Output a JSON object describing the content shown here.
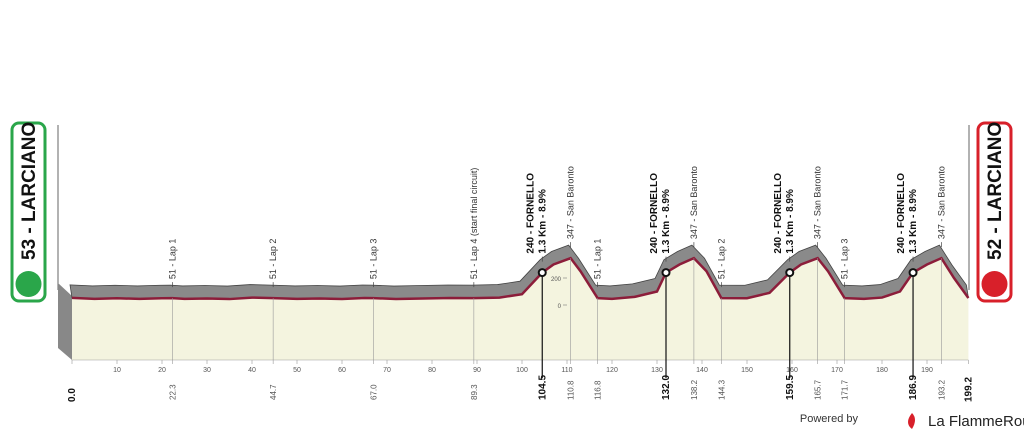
{
  "chart_data": {
    "type": "area",
    "start": "53 - LARCIANO",
    "finish": "52 - LARCIANO",
    "x": [
      0,
      5,
      10,
      15,
      20,
      22.3,
      25,
      30,
      35,
      40,
      44.7,
      50,
      55,
      60,
      65,
      67,
      72,
      78,
      84,
      89.3,
      95,
      100,
      104.5,
      107,
      110.8,
      113,
      116.8,
      120,
      125,
      130,
      132,
      135,
      138.2,
      141,
      144.3,
      150,
      155,
      159.5,
      162,
      165.7,
      168,
      171.7,
      176,
      180,
      184,
      186.9,
      190,
      193.2,
      196,
      199.2
    ],
    "values": [
      53,
      45,
      50,
      45,
      50,
      51,
      45,
      48,
      44,
      55,
      51,
      45,
      48,
      44,
      52,
      51,
      44,
      48,
      52,
      51,
      55,
      80,
      240,
      300,
      347,
      250,
      51,
      45,
      60,
      100,
      240,
      300,
      347,
      250,
      51,
      50,
      90,
      240,
      300,
      347,
      250,
      51,
      45,
      55,
      100,
      240,
      300,
      347,
      200,
      52
    ],
    "xlim": [
      0,
      199.2
    ],
    "ylim": [
      0,
      400
    ],
    "xticks": [
      {
        "value": 0,
        "label": "0.0"
      },
      10,
      20,
      30,
      40,
      50,
      60,
      70,
      80,
      90,
      100,
      110,
      120,
      130,
      140,
      150,
      160,
      170,
      180,
      190,
      {
        "value": 199.2,
        "label": "199.2"
      }
    ],
    "yticks": [
      0,
      200
    ],
    "points": [
      {
        "km": 22.3,
        "text": [
          "51 - Lap 1"
        ]
      },
      {
        "km": 44.7,
        "text": [
          "51 - Lap 2"
        ]
      },
      {
        "km": {
          "value": 67,
          "label": "67.0"
        },
        "text": [
          "51 - Lap 3"
        ]
      },
      {
        "km": 89.3,
        "text": [
          "51 - Lap 4 (start final circuit)"
        ]
      },
      {
        "km": 104.5,
        "text": [
          "240 - FORNELLO",
          "1.3 Km - 8.9%"
        ],
        "climb": true
      },
      {
        "km": 110.8,
        "text": [
          "347 - San Baronto"
        ]
      },
      {
        "km": 116.8,
        "text": [
          "51 - Lap 1"
        ]
      },
      {
        "km": {
          "value": 132,
          "label": "132.0"
        },
        "text": [
          "240 - FORNELLO",
          "1.3 Km - 8.9%"
        ],
        "climb": true
      },
      {
        "km": 138.2,
        "text": [
          "347 - San Baronto"
        ]
      },
      {
        "km": 144.3,
        "text": [
          "51 - Lap 2"
        ]
      },
      {
        "km": 159.5,
        "text": [
          "240 - FORNELLO",
          "1.3 Km - 8.9%"
        ],
        "climb": true
      },
      {
        "km": 165.7,
        "text": [
          "347 - San Baronto"
        ]
      },
      {
        "km": 171.7,
        "text": [
          "51 - Lap 3"
        ]
      },
      {
        "km": 186.9,
        "text": [
          "240 - FORNELLO",
          "1.3 Km - 8.9%"
        ],
        "climb": true
      },
      {
        "km": 193.2,
        "text": [
          "347 - San Baronto"
        ]
      }
    ]
  },
  "footer": {
    "powered": "Powered by",
    "brand": "La FlammeRouge"
  }
}
